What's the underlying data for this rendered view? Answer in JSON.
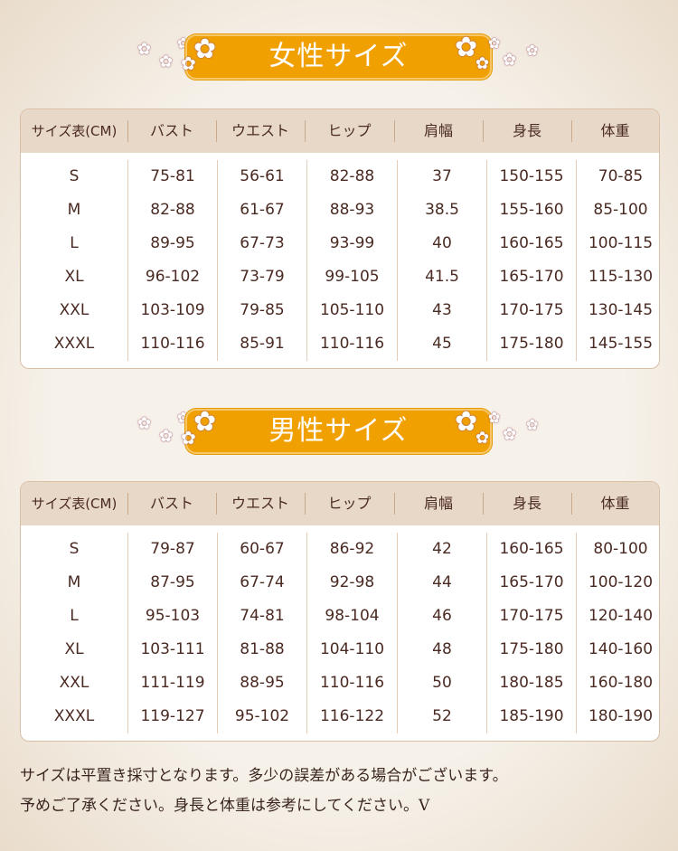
{
  "women": {
    "title": "女性サイズ",
    "headers": [
      "サイズ表(CM)",
      "バスト",
      "ウエスト",
      "ヒップ",
      "肩幅",
      "身長",
      "体重"
    ],
    "rows": [
      [
        "S",
        "75-81",
        "56-61",
        "82-88",
        "37",
        "150-155",
        "70-85"
      ],
      [
        "M",
        "82-88",
        "61-67",
        "88-93",
        "38.5",
        "155-160",
        "85-100"
      ],
      [
        "L",
        "89-95",
        "67-73",
        "93-99",
        "40",
        "160-165",
        "100-115"
      ],
      [
        "XL",
        "96-102",
        "73-79",
        "99-105",
        "41.5",
        "165-170",
        "115-130"
      ],
      [
        "XXL",
        "103-109",
        "79-85",
        "105-110",
        "43",
        "170-175",
        "130-145"
      ],
      [
        "XXXL",
        "110-116",
        "85-91",
        "110-116",
        "45",
        "175-180",
        "145-155"
      ]
    ]
  },
  "men": {
    "title": "男性サイズ",
    "headers": [
      "サイズ表(CM)",
      "バスト",
      "ウエスト",
      "ヒップ",
      "肩幅",
      "身長",
      "体重"
    ],
    "rows": [
      [
        "S",
        "79-87",
        "60-67",
        "86-92",
        "42",
        "160-165",
        "80-100"
      ],
      [
        "M",
        "87-95",
        "67-74",
        "92-98",
        "44",
        "165-170",
        "100-120"
      ],
      [
        "L",
        "95-103",
        "74-81",
        "98-104",
        "46",
        "170-175",
        "120-140"
      ],
      [
        "XL",
        "103-111",
        "81-88",
        "104-110",
        "48",
        "175-180",
        "140-160"
      ],
      [
        "XXL",
        "111-119",
        "88-95",
        "110-116",
        "50",
        "180-185",
        "160-180"
      ],
      [
        "XXXL",
        "119-127",
        "95-102",
        "116-122",
        "52",
        "185-190",
        "180-190"
      ]
    ]
  },
  "notes": [
    "サイズは平置き採寸となります。多少の誤差がある場合がございます。",
    "予めご了承ください。身長と体重は参考にしてください。V"
  ],
  "colors": {
    "banner": "#f0a000",
    "header_band": "#e8d8c8",
    "text": "#4a2a22"
  }
}
